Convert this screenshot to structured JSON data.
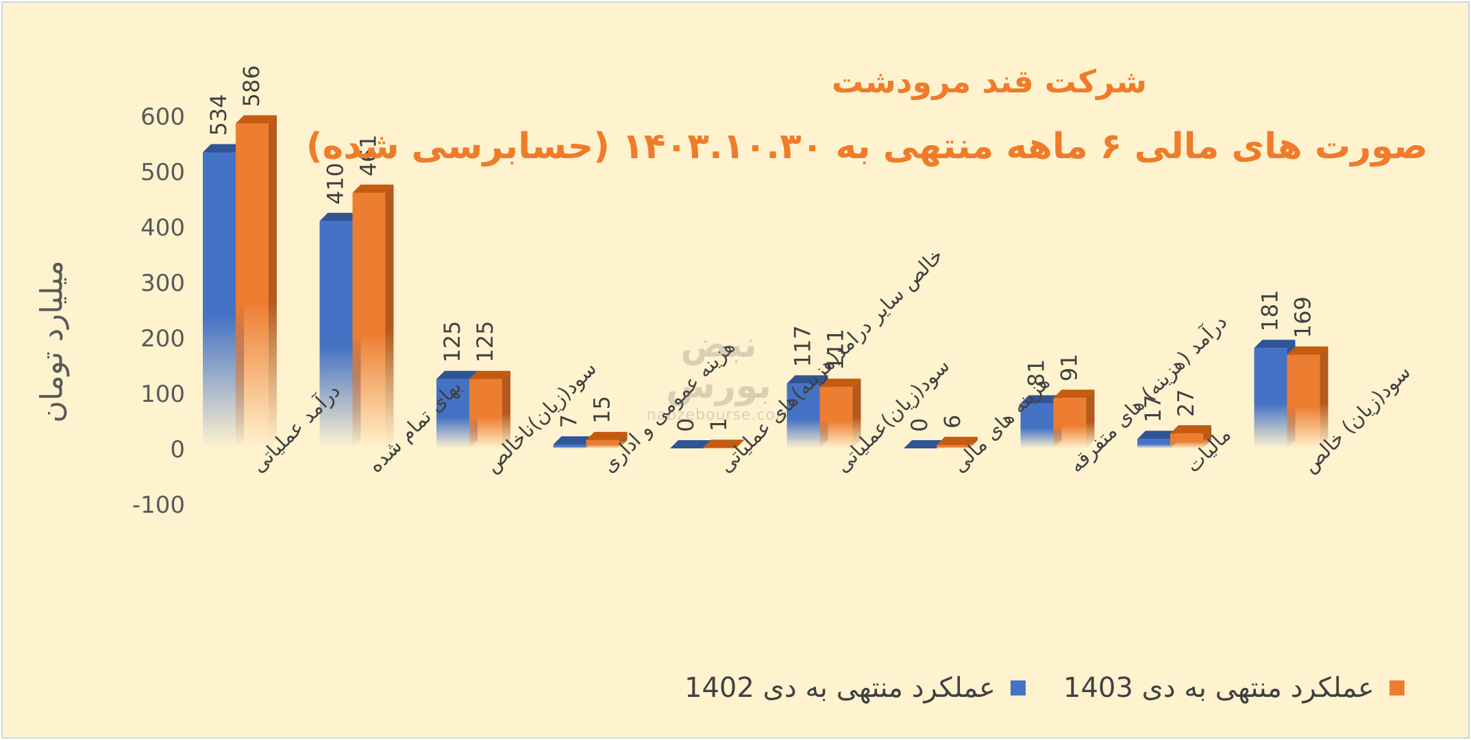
{
  "title": "شرکت قند مرودشت",
  "subtitle": "صورت های مالی ۶ ماهه منتهی به ۱۴۰۳.۱۰.۳۰ (حسابرسی شده)",
  "watermark": {
    "name": "نبض بورس",
    "url": "nabzebourse.com"
  },
  "chart_data": {
    "type": "bar",
    "ylabel": "میلیارد تومان",
    "ylim": [
      -100,
      600
    ],
    "yticks": [
      "600",
      "500",
      "400",
      "300",
      "200",
      "100",
      "0",
      "-100"
    ],
    "categories": [
      "درآمد عملیاتی",
      "بهای تمام شده",
      "سود(زیان)ناخالص",
      "هزینه عمومی و اداری",
      "خالص سایر درامد(هزینه)های عملیاتی",
      "سود(زیان)عملیاتی",
      "هزینه های مالی",
      "درآمد (هزینه) های متفرقه",
      "مالیات",
      "سود(زیان) خالص"
    ],
    "series": [
      {
        "name": "عملکرد منتهی به دی 1402",
        "color": "#4472c4",
        "values": [
          534,
          410,
          125,
          7,
          0,
          117,
          0,
          81,
          17,
          181
        ]
      },
      {
        "name": "عملکرد منتهی به دی 1403",
        "color": "#ed7d31",
        "values": [
          586,
          461,
          125,
          15,
          1,
          111,
          6,
          91,
          27,
          169
        ]
      }
    ],
    "legend_position": "bottom"
  }
}
